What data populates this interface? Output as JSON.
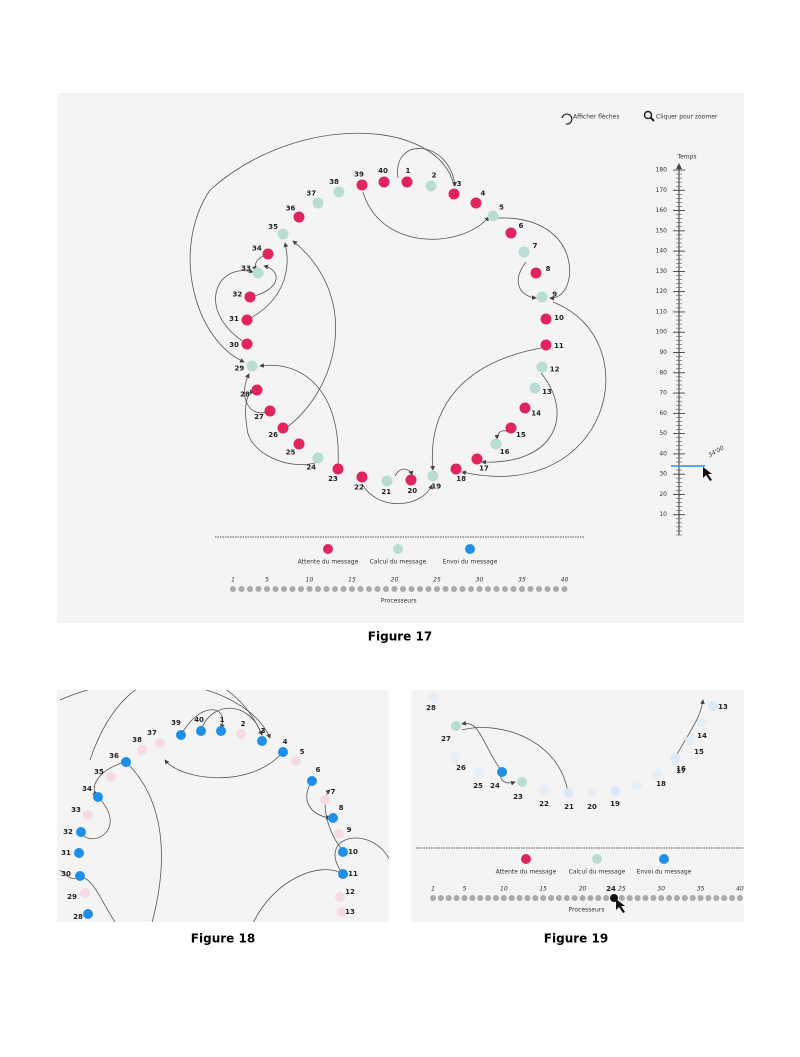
{
  "figure17": {
    "buttons": [
      "Afficher flèches",
      "Cliquer pour zoomer"
    ],
    "time_axis": {
      "title": "Temps",
      "ylim": [
        0,
        180
      ],
      "ticks": [
        10,
        20,
        30,
        40,
        50,
        60,
        70,
        80,
        90,
        100,
        110,
        120,
        130,
        140,
        150,
        160,
        170,
        180
      ],
      "cursor": {
        "value": 34,
        "label": "34'00"
      }
    },
    "nodes": {
      "labels": [
        1,
        2,
        3,
        4,
        5,
        6,
        7,
        8,
        9,
        10,
        11,
        12,
        13,
        14,
        15,
        16,
        17,
        18,
        19,
        20,
        21,
        22,
        23,
        24,
        25,
        26,
        27,
        28,
        29,
        30,
        31,
        32,
        33,
        34,
        35,
        36,
        37,
        38,
        39,
        40
      ],
      "colors": [
        "#e0245e",
        "#b9ddd5",
        "#e0245e",
        "#e0245e",
        "#b9ddd5",
        "#e0245e",
        "#b9ddd5",
        "#e0245e",
        "#b9ddd5",
        "#e0245e",
        "#e0245e",
        "#b9ddd5",
        "#b9ddd5",
        "#e0245e",
        "#e0245e",
        "#b9ddd5",
        "#e0245e",
        "#e0245e",
        "#b9ddd5",
        "#e0245e",
        "#b9ddd5",
        "#e0245e",
        "#e0245e",
        "#b9ddd5",
        "#e0245e",
        "#e0245e",
        "#e0245e",
        "#e0245e",
        "#b9ddd5",
        "#e0245e",
        "#e0245e",
        "#e0245e",
        "#b9ddd5",
        "#e0245e",
        "#b9ddd5",
        "#e0245e",
        "#b9ddd5",
        "#b9ddd5",
        "#e0245e",
        "#e0245e"
      ]
    },
    "legend": [
      {
        "label": "Attente du message",
        "color": "#e0245e"
      },
      {
        "label": "Calcul du message",
        "color": "#b9ddd5"
      },
      {
        "label": "Envoi du message",
        "color": "#1e8fe8"
      }
    ],
    "processor_axis": {
      "count": 40,
      "ticks": [
        1,
        5,
        10,
        15,
        20,
        25,
        30,
        35,
        40
      ],
      "title": "Processeurs"
    },
    "caption": "Figure 17"
  },
  "figure18": {
    "nodes": [
      {
        "label": 39,
        "color": "#1e8fe8"
      },
      {
        "label": 40,
        "color": "#1e8fe8"
      },
      {
        "label": 1,
        "color": "#1e8fe8"
      },
      {
        "label": 3,
        "color": "#1e8fe8"
      },
      {
        "label": 4,
        "color": "#1e8fe8"
      },
      {
        "label": 6,
        "color": "#1e8fe8"
      },
      {
        "label": 8,
        "color": "#1e8fe8"
      },
      {
        "label": 10,
        "color": "#1e8fe8"
      },
      {
        "label": 11,
        "color": "#1e8fe8"
      },
      {
        "label": 36,
        "color": "#1e8fe8"
      },
      {
        "label": 34,
        "color": "#1e8fe8"
      },
      {
        "label": 32,
        "color": "#1e8fe8"
      },
      {
        "label": 31,
        "color": "#1e8fe8"
      },
      {
        "label": 30,
        "color": "#1e8fe8"
      },
      {
        "label": 28,
        "color": "#1e8fe8"
      },
      {
        "label": 2,
        "color": "#f6dbe4",
        "faded": true
      },
      {
        "label": 38,
        "color": "#f6dbe4",
        "faded": true
      },
      {
        "label": 37,
        "color": "#f6dbe4",
        "faded": true
      },
      {
        "label": 35,
        "color": "#f6dbe4",
        "faded": true
      },
      {
        "label": 33,
        "color": "#f6dbe4",
        "faded": true
      },
      {
        "label": 29,
        "color": "#f6dbe4",
        "faded": true
      },
      {
        "label": 5,
        "color": "#f6dbe4",
        "faded": true
      },
      {
        "label": 7,
        "color": "#f6dbe4",
        "faded": true
      },
      {
        "label": 9,
        "color": "#f6dbe4",
        "faded": true
      },
      {
        "label": 12,
        "color": "#f6dbe4",
        "faded": true
      },
      {
        "label": 13,
        "color": "#f6dbe4",
        "faded": true
      }
    ],
    "caption": "Figure 18"
  },
  "figure19": {
    "nodes": [
      {
        "label": 27,
        "color": "#b9ddd5"
      },
      {
        "label": 24,
        "color": "#1e8fe8"
      },
      {
        "label": 23,
        "color": "#b9ddd5"
      },
      {
        "label": 28,
        "color": "#e8eef5",
        "faded": true
      },
      {
        "label": 26,
        "color": "#e8eef5",
        "faded": true
      },
      {
        "label": 25,
        "color": "#e8eef5",
        "faded": true
      },
      {
        "label": 22,
        "color": "#e8eef5",
        "faded": true
      },
      {
        "label": 21,
        "color": "#dce9f7",
        "faded": true
      },
      {
        "label": 20,
        "color": "#e8eef5",
        "faded": true
      },
      {
        "label": 19,
        "color": "#dce9f7",
        "faded": true
      },
      {
        "label": 18,
        "color": "#e8eef5",
        "faded": true
      },
      {
        "label": 17,
        "color": "#e8eef5",
        "faded": true
      },
      {
        "label": 16,
        "color": "#dce9f7",
        "faded": true
      },
      {
        "label": 15,
        "color": "#e8eef5",
        "faded": true
      },
      {
        "label": 14,
        "color": "#e8eef5",
        "faded": true
      },
      {
        "label": 13,
        "color": "#dce9f7",
        "faded": true
      }
    ],
    "legend": [
      {
        "label": "Attente du message",
        "color": "#e0245e"
      },
      {
        "label": "Calcul du message",
        "color": "#b9ddd5"
      },
      {
        "label": "Envoi du message",
        "color": "#1e8fe8"
      }
    ],
    "processor_axis": {
      "count": 40,
      "ticks": [
        1,
        5,
        10,
        15,
        20,
        25,
        30,
        35,
        40
      ],
      "cursor": 24,
      "title": "Processeurs"
    },
    "caption": "Figure 19"
  }
}
